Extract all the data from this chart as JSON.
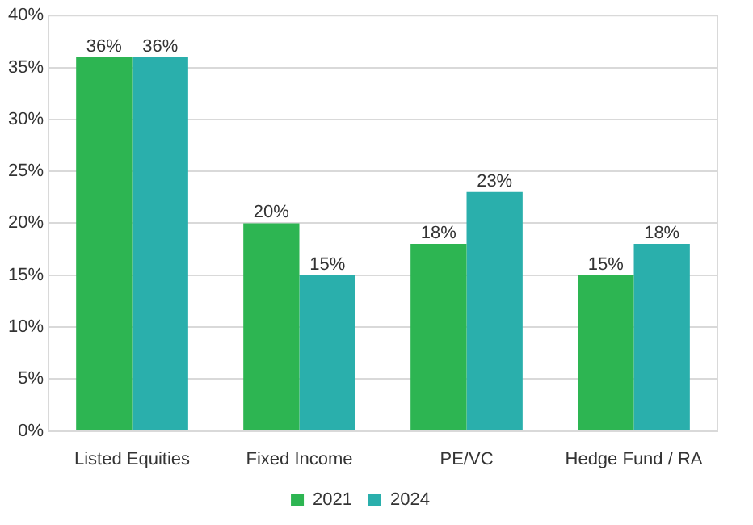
{
  "chart_data": {
    "type": "bar",
    "categories": [
      "Listed Equities",
      "Fixed Income",
      "PE/VC",
      "Hedge Fund / RA"
    ],
    "series": [
      {
        "name": "2021",
        "color": "#2db552",
        "values": [
          36,
          20,
          18,
          15
        ],
        "value_labels": [
          "36%",
          "20%",
          "18%",
          "15%"
        ]
      },
      {
        "name": "2024",
        "color": "#2aafac",
        "values": [
          36,
          15,
          23,
          18
        ],
        "value_labels": [
          "36%",
          "15%",
          "23%",
          "18%"
        ]
      }
    ],
    "ylim": [
      0,
      40
    ],
    "yticks": [
      {
        "value": 0,
        "label": "0%"
      },
      {
        "value": 5,
        "label": "5%"
      },
      {
        "value": 10,
        "label": "10%"
      },
      {
        "value": 15,
        "label": "15%"
      },
      {
        "value": 20,
        "label": "20%"
      },
      {
        "value": 25,
        "label": "25%"
      },
      {
        "value": 30,
        "label": "30%"
      },
      {
        "value": 35,
        "label": "35%"
      },
      {
        "value": 40,
        "label": "40%"
      }
    ],
    "grid": "y",
    "legend": "bottom"
  }
}
